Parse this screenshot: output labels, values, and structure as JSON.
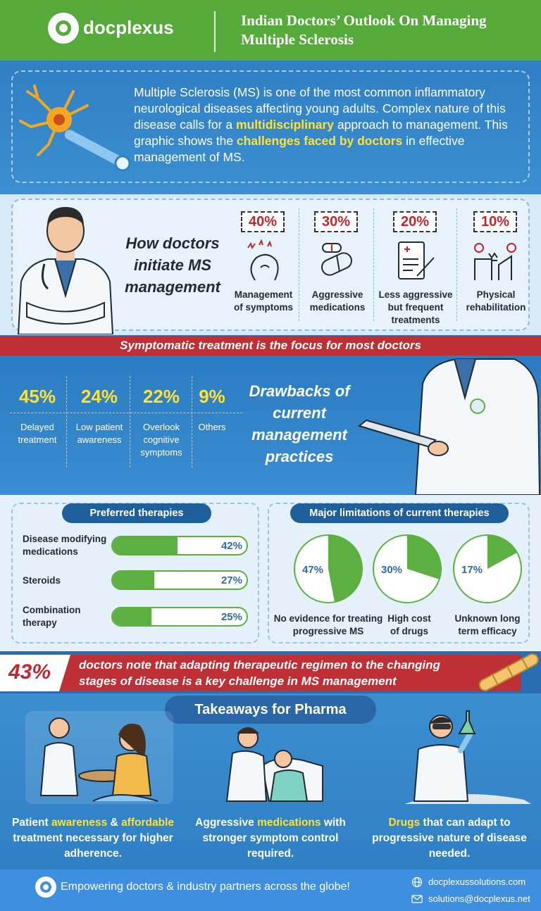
{
  "header": {
    "logo_text": "docplexus",
    "title": "Indian Doctors’ Outlook On Managing Multiple Sclerosis"
  },
  "intro": {
    "text_1": "Multiple Sclerosis (MS) is one of the most common inflammatory neurological diseases affecting young adults. Complex nature of this disease calls for a ",
    "hl_1": "multidisciplinary",
    "text_2": " approach to management. This graphic shows the ",
    "hl_2": "challenges faced by doctors",
    "text_3": " in effective management of MS."
  },
  "initiate": {
    "title": "How doctors initiate MS management",
    "items": [
      {
        "pct": "40%",
        "label": "Management of symptoms",
        "icon": "headache-icon"
      },
      {
        "pct": "30%",
        "label": "Aggressive medications",
        "icon": "pills-icon"
      },
      {
        "pct": "20%",
        "label": "Less aggressive but frequent treatments",
        "icon": "prescription-icon"
      },
      {
        "pct": "10%",
        "label": "Physical rehabilitation",
        "icon": "rehab-icon"
      }
    ]
  },
  "red_banner": "Symptomatic treatment is the focus for most doctors",
  "drawbacks": {
    "title": "Drawbacks of current management practices",
    "items": [
      {
        "pct": "45%",
        "label": "Delayed treatment"
      },
      {
        "pct": "24%",
        "label": "Low patient awareness"
      },
      {
        "pct": "22%",
        "label": "Overlook cognitive symptoms"
      },
      {
        "pct": "9%",
        "label": "Others"
      }
    ]
  },
  "preferred": {
    "title": "Preferred therapies",
    "bars": [
      {
        "label": "Disease modifying medications",
        "value": 42,
        "text": "42%"
      },
      {
        "label": "Steroids",
        "value": 27,
        "text": "27%"
      },
      {
        "label": "Combination therapy",
        "value": 25,
        "text": "25%"
      }
    ]
  },
  "limitations": {
    "title": "Major limitations of current therapies",
    "pies": [
      {
        "value": 47,
        "text": "47%",
        "label": "No evidence for treating progressive MS"
      },
      {
        "value": 30,
        "text": "30%",
        "label": "High cost of drugs"
      },
      {
        "value": 17,
        "text": "17%",
        "label": "Unknown long term efficacy"
      }
    ]
  },
  "challenge": {
    "pct": "43%",
    "text": "doctors note that adapting therapeutic regimen to the changing stages of disease is a key challenge in MS management"
  },
  "takeaways": {
    "title": "Takeaways for Pharma",
    "items": [
      {
        "parts": [
          [
            "Patient ",
            false
          ],
          [
            "awareness",
            true
          ],
          [
            " & ",
            false
          ],
          [
            "affordable",
            true
          ],
          [
            " treatment necessary for higher adherence.",
            false
          ]
        ]
      },
      {
        "parts": [
          [
            "Aggressive ",
            false
          ],
          [
            "medications",
            true
          ],
          [
            " with stronger symptom control required.",
            false
          ]
        ]
      },
      {
        "parts": [
          [
            "Drugs",
            true
          ],
          [
            " that can adapt to progressive nature of disease needed.",
            false
          ]
        ]
      }
    ]
  },
  "footer": {
    "tagline": "Empowering doctors & industry partners across the globe!",
    "website": "docplexussolutions.com",
    "email": "solutions@docplexus.net"
  },
  "colors": {
    "header_green": "#55aa3a",
    "accent_red": "#bf2f36",
    "highlight_yellow": "#ffe133",
    "bar_green": "#5cb042",
    "navy": "#1e5f9c"
  }
}
